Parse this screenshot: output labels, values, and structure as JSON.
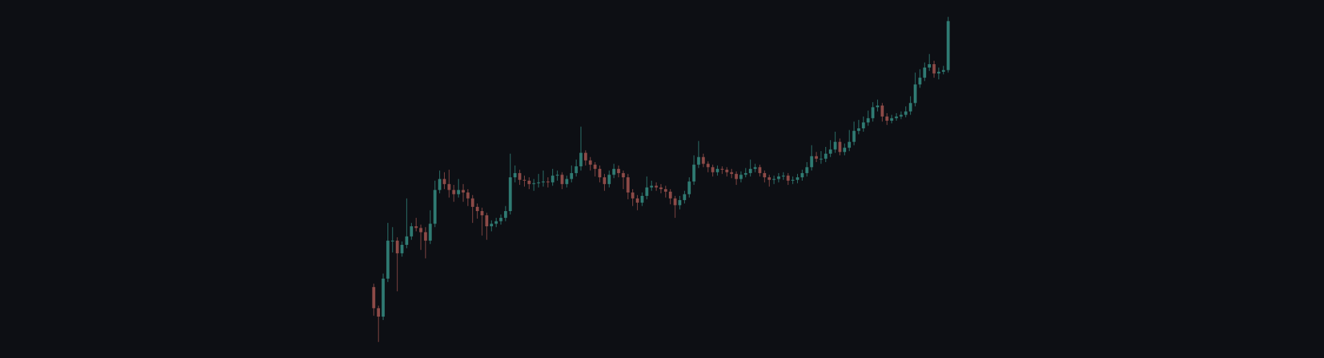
{
  "chart_data": {
    "type": "candlestick",
    "open": [
      84,
      59,
      49,
      94,
      139,
      139,
      124,
      134,
      144,
      156,
      154,
      149,
      139,
      159,
      199,
      212,
      206,
      199,
      194,
      199,
      196,
      189,
      179,
      174,
      169,
      156,
      159,
      162,
      166,
      174,
      214,
      219,
      211,
      210,
      206,
      207,
      208,
      209,
      208,
      216,
      217,
      206,
      212,
      219,
      227,
      243,
      234,
      229,
      224,
      214,
      206,
      217,
      224,
      219,
      214,
      196,
      189,
      184,
      192,
      202,
      204,
      202,
      200,
      197,
      189,
      181,
      187,
      194,
      209,
      229,
      238,
      230,
      226,
      220,
      224,
      223,
      220,
      218,
      212,
      217,
      219,
      224,
      226,
      219,
      214,
      211,
      212,
      215,
      216,
      210,
      211,
      214,
      219,
      226,
      239,
      236,
      236,
      242,
      247,
      256,
      244,
      249,
      256,
      269,
      272,
      279,
      284,
      297,
      299,
      286,
      281,
      284,
      286,
      288,
      292,
      302,
      324,
      332,
      344,
      348,
      337,
      339,
      341
    ],
    "high": [
      88,
      62,
      100,
      160,
      155,
      143,
      138,
      189,
      160,
      166,
      158,
      155,
      175,
      210,
      222,
      220,
      223,
      205,
      212,
      206,
      200,
      193,
      183,
      178,
      172,
      163,
      166,
      170,
      180,
      242,
      228,
      223,
      216,
      214,
      212,
      218,
      222,
      214,
      224,
      222,
      220,
      216,
      228,
      235,
      274,
      246,
      238,
      232,
      228,
      218,
      222,
      230,
      228,
      222,
      218,
      200,
      193,
      196,
      215,
      210,
      208,
      206,
      204,
      200,
      192,
      192,
      198,
      214,
      240,
      257,
      242,
      233,
      229,
      228,
      227,
      226,
      224,
      221,
      221,
      225,
      235,
      230,
      229,
      222,
      217,
      216,
      219,
      220,
      219,
      215,
      218,
      223,
      232,
      252,
      244,
      245,
      250,
      258,
      268,
      260,
      254,
      270,
      280,
      282,
      286,
      293,
      303,
      306,
      302,
      290,
      288,
      290,
      292,
      298,
      310,
      338,
      342,
      350,
      360,
      352,
      344,
      346,
      404
    ],
    "low": [
      50,
      19,
      45,
      90,
      125,
      79,
      120,
      130,
      140,
      150,
      128,
      118,
      135,
      155,
      195,
      200,
      190,
      185,
      190,
      185,
      180,
      160,
      165,
      145,
      140,
      150,
      155,
      158,
      162,
      170,
      208,
      205,
      203,
      200,
      198,
      202,
      203,
      202,
      204,
      210,
      200,
      202,
      208,
      215,
      222,
      228,
      222,
      215,
      208,
      198,
      202,
      213,
      214,
      200,
      188,
      180,
      175,
      180,
      188,
      198,
      198,
      195,
      190,
      182,
      166,
      176,
      183,
      190,
      205,
      225,
      226,
      220,
      215,
      216,
      218,
      215,
      213,
      205,
      208,
      214,
      215,
      220,
      215,
      208,
      203,
      206,
      208,
      211,
      205,
      206,
      207,
      210,
      215,
      222,
      232,
      230,
      232,
      238,
      243,
      240,
      240,
      245,
      252,
      265,
      268,
      275,
      280,
      292,
      280,
      276,
      278,
      281,
      283,
      285,
      288,
      298,
      320,
      328,
      340,
      332,
      330,
      336,
      338
    ],
    "close": [
      59,
      49,
      94,
      139,
      139,
      124,
      134,
      144,
      156,
      154,
      149,
      139,
      159,
      199,
      212,
      206,
      199,
      194,
      199,
      196,
      189,
      179,
      174,
      169,
      156,
      159,
      162,
      166,
      174,
      214,
      219,
      211,
      210,
      206,
      207,
      208,
      209,
      208,
      216,
      217,
      206,
      212,
      219,
      227,
      243,
      234,
      229,
      224,
      214,
      206,
      217,
      224,
      219,
      214,
      196,
      189,
      184,
      192,
      202,
      204,
      202,
      200,
      197,
      189,
      181,
      187,
      194,
      209,
      229,
      238,
      230,
      226,
      220,
      224,
      223,
      220,
      218,
      212,
      217,
      219,
      224,
      226,
      219,
      214,
      211,
      212,
      215,
      216,
      210,
      211,
      214,
      219,
      226,
      239,
      236,
      236,
      242,
      247,
      256,
      244,
      249,
      256,
      269,
      272,
      279,
      284,
      297,
      299,
      286,
      281,
      284,
      286,
      288,
      292,
      302,
      324,
      332,
      344,
      348,
      337,
      339,
      341,
      399
    ],
    "ylim": [
      0,
      424
    ],
    "up_color": "#2f7a72",
    "down_color": "#8c4a47"
  }
}
